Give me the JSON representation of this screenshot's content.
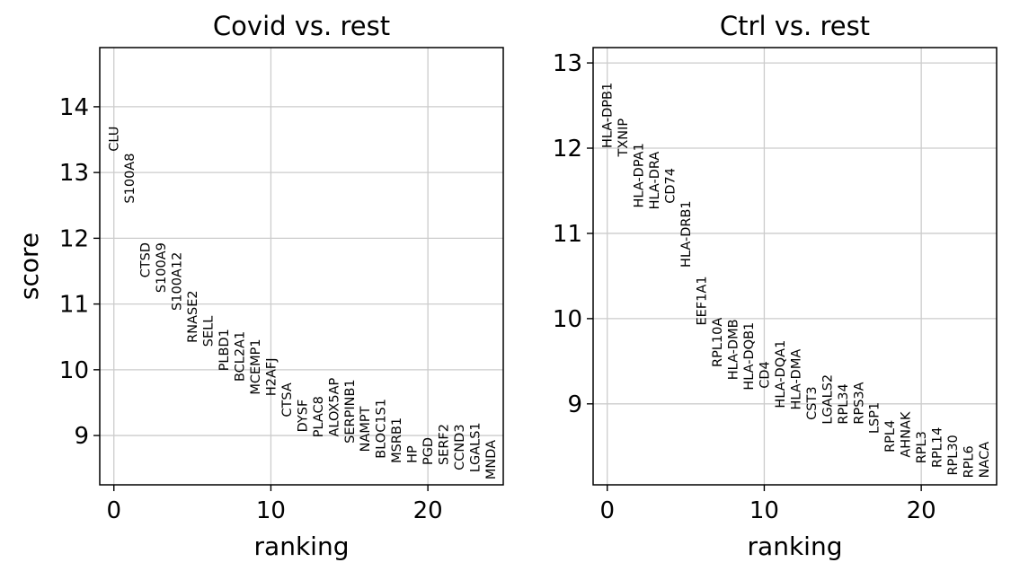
{
  "chart_data": [
    {
      "type": "scatter",
      "title": "Covid vs. rest",
      "xlabel": "ranking",
      "ylabel": "score",
      "xlim": [
        -0.9,
        24.8
      ],
      "ylim": [
        8.25,
        14.9
      ],
      "xticks": [
        "0",
        "10",
        "20"
      ],
      "yticks": [
        "9",
        "10",
        "11",
        "12",
        "13",
        "14"
      ],
      "grid": true,
      "genes": [
        "CLU",
        "S100A8",
        "CTSD",
        "S100A9",
        "S100A12",
        "RNASE2",
        "SELL",
        "PLBD1",
        "BCL2A1",
        "MCEMP1",
        "H2AFJ",
        "CTSA",
        "DYSF",
        "PLAC8",
        "ALOX5AP",
        "SERPINB1",
        "NAMPT",
        "BLOC1S1",
        "MSRB1",
        "HP",
        "PGD",
        "SERF2",
        "CCND3",
        "LGALS1",
        "MNDA"
      ],
      "x": [
        0,
        1,
        2,
        3,
        4,
        5,
        6,
        7,
        8,
        9,
        10,
        11,
        12,
        13,
        14,
        15,
        16,
        17,
        18,
        19,
        20,
        21,
        22,
        23,
        24
      ],
      "scores": [
        13.32,
        12.53,
        11.4,
        11.17,
        10.9,
        10.41,
        10.35,
        9.98,
        9.82,
        9.62,
        9.6,
        9.28,
        9.05,
        8.97,
        8.98,
        8.88,
        8.75,
        8.65,
        8.58,
        8.58,
        8.55,
        8.55,
        8.47,
        8.44,
        8.33
      ]
    },
    {
      "type": "scatter",
      "title": "Ctrl vs. rest",
      "xlabel": "ranking",
      "ylabel": "",
      "xlim": [
        -0.9,
        24.8
      ],
      "ylim": [
        8.05,
        13.18
      ],
      "xticks": [
        "0",
        "10",
        "20"
      ],
      "yticks": [
        "9",
        "10",
        "11",
        "12",
        "13"
      ],
      "grid": true,
      "genes": [
        "HLA-DPB1",
        "TXNIP",
        "HLA-DPA1",
        "HLA-DRA",
        "CD74",
        "HLA-DRB1",
        "EEF1A1",
        "RPL10A",
        "HLA-DMB",
        "HLA-DQB1",
        "CD4",
        "HLA-DQA1",
        "HLA-DMA",
        "CST3",
        "LGALS2",
        "RPL34",
        "RPS3A",
        "LSP1",
        "RPL4",
        "AHNAK",
        "RPL3",
        "RPL14",
        "RPL30",
        "RPL6",
        "NACA"
      ],
      "x": [
        0,
        1,
        2,
        3,
        4,
        5,
        6,
        7,
        8,
        9,
        10,
        11,
        12,
        13,
        14,
        15,
        16,
        17,
        18,
        19,
        20,
        21,
        22,
        23,
        24
      ],
      "scores": [
        12.0,
        11.9,
        11.3,
        11.28,
        11.35,
        10.6,
        9.92,
        9.43,
        9.28,
        9.16,
        9.18,
        8.95,
        8.93,
        8.81,
        8.76,
        8.76,
        8.76,
        8.65,
        8.43,
        8.37,
        8.3,
        8.25,
        8.16,
        8.13,
        8.13
      ]
    }
  ]
}
